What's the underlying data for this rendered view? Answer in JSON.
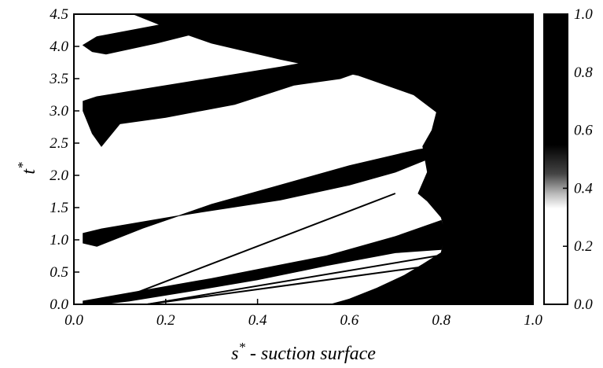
{
  "chart_data": {
    "type": "heatmap",
    "title": "",
    "xlabel": "s* - suction surface",
    "xlabel_var": "s",
    "xlabel_sup": "*",
    "xlabel_rest": "-  suction surface",
    "ylabel": "t*",
    "ylabel_var": "t",
    "ylabel_sup": "*",
    "xlim": [
      0.0,
      1.0
    ],
    "ylim": [
      0.0,
      4.5
    ],
    "x_ticks": [
      "0.0",
      "0.2",
      "0.4",
      "0.6",
      "0.8",
      "1.0"
    ],
    "y_ticks": [
      "0.0",
      "0.5",
      "1.0",
      "1.5",
      "2.0",
      "2.5",
      "3.0",
      "3.5",
      "4.0",
      "4.5"
    ],
    "colorbar": {
      "range": [
        0.0,
        1.0
      ],
      "ticks": [
        "0.0",
        "0.2",
        "0.4",
        "0.6",
        "0.8",
        "1.0"
      ],
      "low_color": "#ffffff",
      "high_color": "#000000"
    },
    "regions": [
      {
        "name": "turbulent-region",
        "value": 1.0,
        "polygon": [
          [
            0.56,
            0.0
          ],
          [
            0.6,
            0.08
          ],
          [
            0.66,
            0.25
          ],
          [
            0.72,
            0.45
          ],
          [
            0.76,
            0.62
          ],
          [
            0.8,
            0.8
          ],
          [
            0.81,
            1.1
          ],
          [
            0.8,
            1.35
          ],
          [
            0.77,
            1.6
          ],
          [
            0.75,
            1.72
          ],
          [
            0.77,
            2.05
          ],
          [
            0.76,
            2.45
          ],
          [
            0.78,
            2.7
          ],
          [
            0.79,
            2.98
          ],
          [
            0.74,
            3.25
          ],
          [
            0.62,
            3.55
          ],
          [
            0.45,
            3.8
          ],
          [
            0.3,
            4.05
          ],
          [
            0.2,
            4.3
          ],
          [
            0.13,
            4.5
          ],
          [
            1.0,
            4.5
          ],
          [
            1.0,
            0.0
          ]
        ]
      },
      {
        "name": "spot-1.0",
        "value": 1.0,
        "polygon": [
          [
            0.06,
            1.17
          ],
          [
            0.25,
            1.4
          ],
          [
            0.45,
            1.62
          ],
          [
            0.6,
            1.85
          ],
          [
            0.7,
            2.05
          ],
          [
            0.77,
            2.25
          ],
          [
            0.8,
            2.45
          ],
          [
            0.75,
            2.4
          ],
          [
            0.6,
            2.15
          ],
          [
            0.45,
            1.85
          ],
          [
            0.3,
            1.55
          ],
          [
            0.15,
            1.18
          ],
          [
            0.05,
            0.9
          ],
          [
            0.02,
            0.95
          ],
          [
            0.02,
            1.1
          ]
        ]
      },
      {
        "name": "spot-3.0",
        "value": 1.0,
        "polygon": [
          [
            0.05,
            3.22
          ],
          [
            0.25,
            3.45
          ],
          [
            0.45,
            3.68
          ],
          [
            0.62,
            3.9
          ],
          [
            0.75,
            4.12
          ],
          [
            0.8,
            4.3
          ],
          [
            0.79,
            4.12
          ],
          [
            0.7,
            3.8
          ],
          [
            0.58,
            3.5
          ],
          [
            0.48,
            3.4
          ],
          [
            0.35,
            3.1
          ],
          [
            0.2,
            2.9
          ],
          [
            0.1,
            2.8
          ],
          [
            0.06,
            2.45
          ],
          [
            0.04,
            2.65
          ],
          [
            0.02,
            3.0
          ],
          [
            0.02,
            3.15
          ]
        ]
      },
      {
        "name": "spot-4.0",
        "value": 1.0,
        "polygon": [
          [
            0.05,
            4.15
          ],
          [
            0.2,
            4.35
          ],
          [
            0.32,
            4.5
          ],
          [
            0.45,
            4.5
          ],
          [
            0.32,
            4.3
          ],
          [
            0.18,
            4.05
          ],
          [
            0.07,
            3.88
          ],
          [
            0.04,
            3.92
          ],
          [
            0.02,
            4.02
          ]
        ]
      },
      {
        "name": "spot-0.0",
        "value": 1.0,
        "polygon": [
          [
            0.02,
            0.05
          ],
          [
            0.3,
            0.4
          ],
          [
            0.55,
            0.75
          ],
          [
            0.7,
            1.05
          ],
          [
            0.8,
            1.3
          ],
          [
            0.81,
            1.1
          ],
          [
            0.8,
            0.85
          ],
          [
            0.7,
            0.8
          ],
          [
            0.55,
            0.6
          ],
          [
            0.4,
            0.38
          ],
          [
            0.25,
            0.2
          ],
          [
            0.12,
            0.05
          ],
          [
            0.06,
            0.0
          ],
          [
            0.02,
            0.0
          ]
        ]
      }
    ],
    "annotation_lines": [
      {
        "name": "upper-trajectory-line",
        "points": [
          [
            0.07,
            0.0
          ],
          [
            0.7,
            1.72
          ]
        ]
      },
      {
        "name": "lower-trajectory-line",
        "points": [
          [
            0.16,
            0.0
          ],
          [
            0.79,
            0.75
          ]
        ]
      },
      {
        "name": "lower-trajectory-line-2",
        "points": [
          [
            0.16,
            0.0
          ],
          [
            0.78,
            0.6
          ]
        ]
      }
    ]
  }
}
